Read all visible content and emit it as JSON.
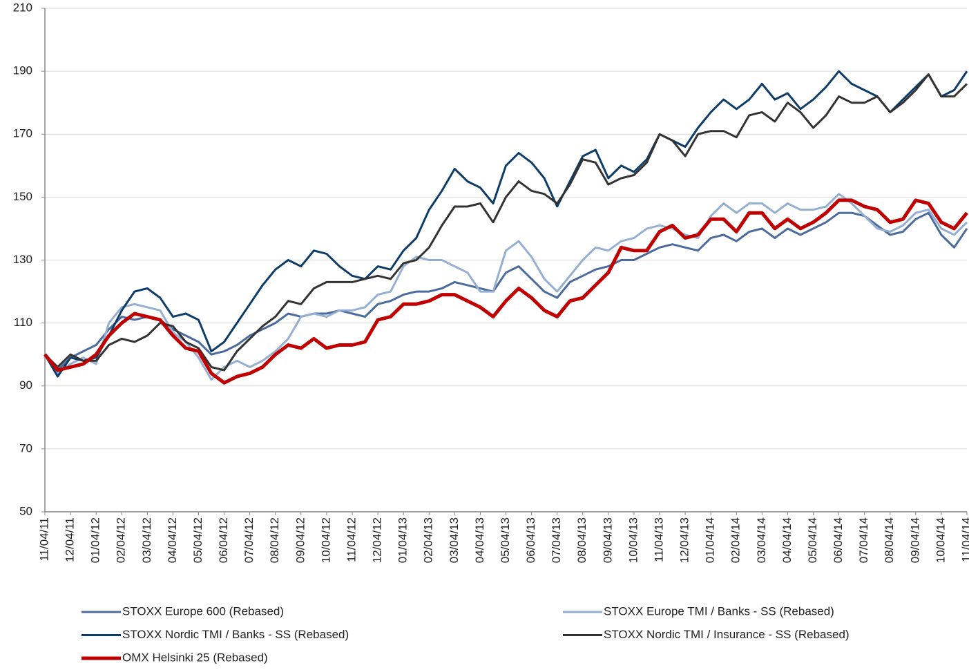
{
  "chart_data": {
    "type": "line",
    "categories": [
      "11/04/11",
      null,
      "12/04/11",
      null,
      "01/04/12",
      null,
      "02/04/12",
      null,
      "03/04/12",
      null,
      "04/04/12",
      null,
      "05/04/12",
      null,
      "06/04/12",
      null,
      "07/04/12",
      null,
      "08/04/12",
      null,
      "09/04/12",
      null,
      "10/04/12",
      null,
      "11/04/12",
      null,
      "12/04/12",
      null,
      "01/04/13",
      null,
      "02/04/13",
      null,
      "03/04/13",
      null,
      "04/04/13",
      null,
      "05/04/13",
      null,
      "06/04/13",
      null,
      "07/04/13",
      null,
      "08/04/13",
      null,
      "09/04/13",
      null,
      "10/04/13",
      null,
      "11/04/13",
      null,
      "12/04/13",
      null,
      "01/04/14",
      null,
      "02/04/14",
      null,
      "03/04/14",
      null,
      "04/04/14",
      null,
      "05/04/14",
      null,
      "06/04/14",
      null,
      "07/04/14",
      null,
      "08/04/14",
      null,
      "09/04/14",
      null,
      "10/04/14",
      null,
      "11/04/14"
    ],
    "series": [
      {
        "name": "STOXX Europe 600 (Rebased)",
        "color": "#4a6b9c",
        "width": 3,
        "values": [
          100,
          95,
          99,
          101,
          103,
          108,
          112,
          111,
          112,
          111,
          108,
          106,
          104,
          100,
          101,
          103,
          106,
          108,
          110,
          113,
          112,
          113,
          113,
          114,
          113,
          112,
          116,
          117,
          119,
          120,
          120,
          121,
          123,
          122,
          121,
          120,
          126,
          128,
          124,
          120,
          118,
          123,
          125,
          127,
          128,
          130,
          130,
          132,
          134,
          135,
          134,
          133,
          137,
          138,
          136,
          139,
          140,
          137,
          140,
          138,
          140,
          142,
          145,
          145,
          144,
          141,
          138,
          139,
          143,
          145,
          138,
          134,
          140
        ]
      },
      {
        "name": "STOXX Europe TMI / Banks - SS (Rebased)",
        "color": "#95afd2",
        "width": 3,
        "values": [
          100,
          94,
          97,
          99,
          97,
          110,
          115,
          116,
          115,
          114,
          107,
          104,
          99,
          92,
          96,
          98,
          96,
          98,
          101,
          105,
          112,
          113,
          112,
          114,
          114,
          115,
          119,
          120,
          128,
          131,
          130,
          130,
          128,
          126,
          120,
          120,
          133,
          136,
          131,
          124,
          120,
          125,
          130,
          134,
          133,
          136,
          137,
          140,
          141,
          140,
          138,
          137,
          144,
          148,
          145,
          148,
          148,
          145,
          148,
          146,
          146,
          147,
          151,
          148,
          144,
          140,
          139,
          141,
          145,
          146,
          140,
          138,
          142
        ]
      },
      {
        "name": "STOXX Nordic TMI / Banks - SS (Rebased)",
        "color": "#0d3c69",
        "width": 3,
        "values": [
          100,
          93,
          99,
          98,
          99,
          106,
          114,
          120,
          121,
          118,
          112,
          113,
          111,
          101,
          104,
          110,
          116,
          122,
          127,
          130,
          128,
          133,
          132,
          128,
          125,
          124,
          128,
          127,
          133,
          137,
          146,
          152,
          159,
          155,
          153,
          148,
          160,
          164,
          161,
          156,
          147,
          155,
          163,
          165,
          156,
          160,
          158,
          162,
          170,
          168,
          166,
          172,
          177,
          181,
          178,
          181,
          186,
          181,
          183,
          178,
          181,
          185,
          190,
          186,
          184,
          182,
          177,
          181,
          185,
          189,
          182,
          184,
          190
        ]
      },
      {
        "name": "STOXX Nordic TMI / Insurance - SS (Rebased)",
        "color": "#333333",
        "width": 3,
        "values": [
          100,
          96,
          100,
          98,
          98,
          103,
          105,
          104,
          106,
          110,
          109,
          104,
          102,
          96,
          95,
          101,
          105,
          109,
          112,
          117,
          116,
          121,
          123,
          123,
          123,
          124,
          125,
          124,
          129,
          130,
          134,
          141,
          147,
          147,
          148,
          142,
          150,
          155,
          152,
          151,
          148,
          154,
          162,
          161,
          154,
          156,
          157,
          161,
          170,
          168,
          163,
          170,
          171,
          171,
          169,
          176,
          177,
          174,
          180,
          177,
          172,
          176,
          182,
          180,
          180,
          182,
          177,
          180,
          184,
          189,
          182,
          182,
          186
        ]
      },
      {
        "name": "OMX Helsinki 25 (Rebased)",
        "color": "#c00000",
        "width": 5,
        "values": [
          100,
          95,
          96,
          97,
          100,
          106,
          110,
          113,
          112,
          111,
          106,
          102,
          101,
          94,
          91,
          93,
          94,
          96,
          100,
          103,
          102,
          105,
          102,
          103,
          103,
          104,
          111,
          112,
          116,
          116,
          117,
          119,
          119,
          117,
          115,
          112,
          117,
          121,
          118,
          114,
          112,
          117,
          118,
          122,
          126,
          134,
          133,
          133,
          139,
          141,
          137,
          138,
          143,
          143,
          139,
          145,
          145,
          140,
          143,
          140,
          142,
          145,
          149,
          149,
          147,
          146,
          142,
          143,
          149,
          148,
          142,
          140,
          145
        ]
      }
    ],
    "ylim": [
      50,
      210
    ],
    "yticks": [
      50,
      70,
      90,
      110,
      130,
      150,
      170,
      190,
      210
    ],
    "grid": true,
    "legend": "bottom"
  }
}
